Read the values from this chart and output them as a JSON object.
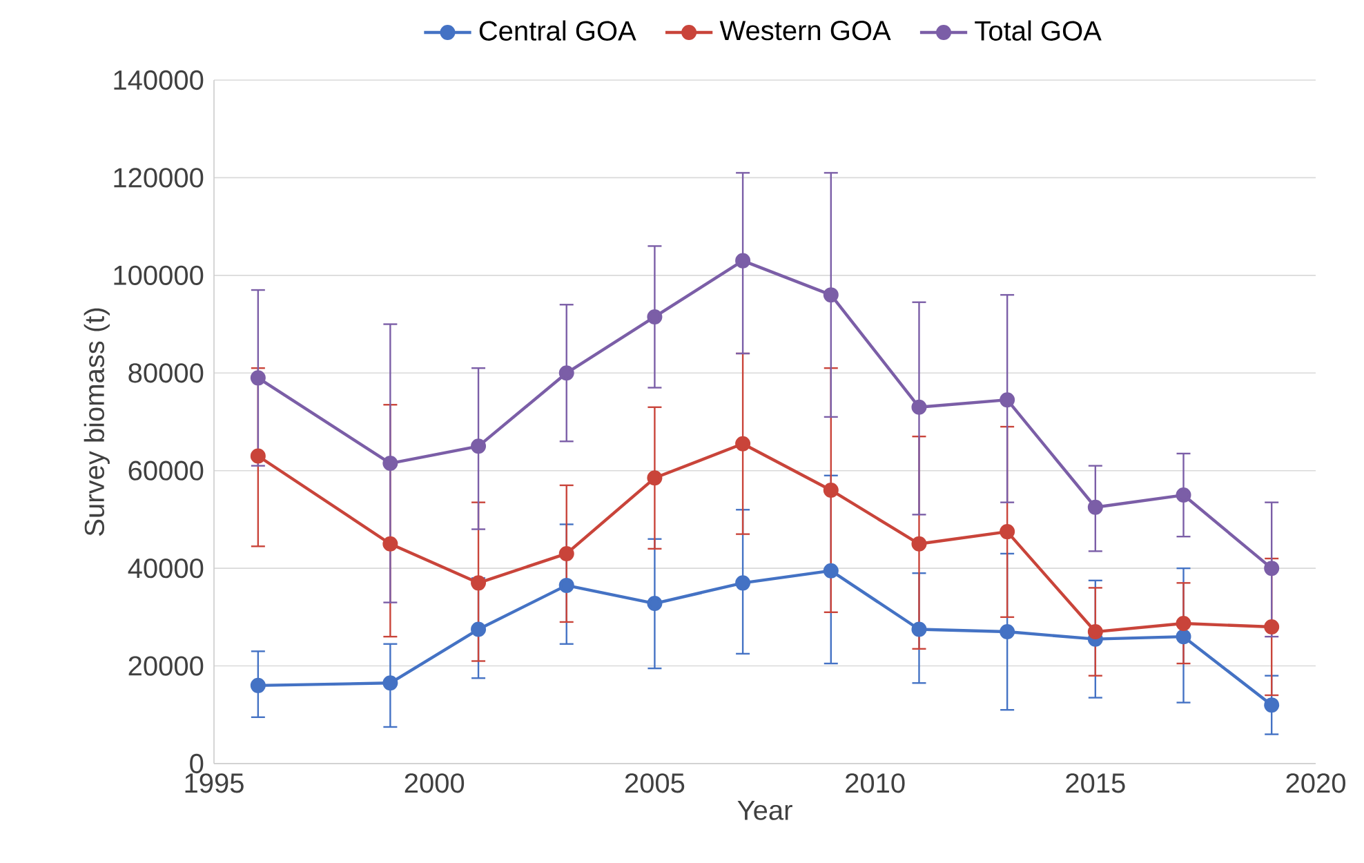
{
  "chart_data": {
    "type": "line",
    "xlabel": "Year",
    "ylabel": "Survey biomass (t)",
    "x": [
      1996,
      1999,
      2001,
      2003,
      2005,
      2007,
      2009,
      2011,
      2013,
      2015,
      2017,
      2019
    ],
    "series": [
      {
        "name": "Central GOA",
        "color": "#4472c4",
        "values": [
          16000,
          16500,
          27500,
          36500,
          32800,
          37000,
          39500,
          27500,
          27000,
          25500,
          26000,
          12000
        ],
        "errors": [
          [
            9500,
            23000
          ],
          [
            7500,
            24500
          ],
          [
            17500,
            38000
          ],
          [
            24500,
            49000
          ],
          [
            19500,
            46000
          ],
          [
            22500,
            52000
          ],
          [
            20500,
            59000
          ],
          [
            16500,
            39000
          ],
          [
            11000,
            43000
          ],
          [
            13500,
            37500
          ],
          [
            12500,
            40000
          ],
          [
            6000,
            18000
          ]
        ]
      },
      {
        "name": "Western GOA",
        "color": "#c9443a",
        "values": [
          63000,
          45000,
          37000,
          43000,
          58500,
          65500,
          56000,
          45000,
          47500,
          27000,
          28700,
          28000
        ],
        "errors": [
          [
            44500,
            81000
          ],
          [
            26000,
            73500
          ],
          [
            21000,
            53500
          ],
          [
            29000,
            57000
          ],
          [
            44000,
            73000
          ],
          [
            47000,
            84000
          ],
          [
            31000,
            81000
          ],
          [
            23500,
            67000
          ],
          [
            30000,
            69000
          ],
          [
            18000,
            36000
          ],
          [
            20500,
            37000
          ],
          [
            14000,
            42000
          ]
        ]
      },
      {
        "name": "Total GOA",
        "color": "#7b5ea7",
        "values": [
          79000,
          61500,
          65000,
          80000,
          91500,
          103000,
          96000,
          73000,
          74500,
          52500,
          55000,
          40000
        ],
        "errors": [
          [
            61000,
            97000
          ],
          [
            33000,
            90000
          ],
          [
            48000,
            81000
          ],
          [
            66000,
            94000
          ],
          [
            77000,
            106000
          ],
          [
            84000,
            121000
          ],
          [
            71000,
            121000
          ],
          [
            51000,
            94500
          ],
          [
            53500,
            96000
          ],
          [
            43500,
            61000
          ],
          [
            46500,
            63500
          ],
          [
            26000,
            53500
          ]
        ]
      }
    ],
    "xlim": [
      1995,
      2020
    ],
    "xticks": [
      1995,
      2000,
      2005,
      2010,
      2015,
      2020
    ],
    "ylim": [
      0,
      140000
    ],
    "yticks": [
      0,
      20000,
      40000,
      60000,
      80000,
      100000,
      120000,
      140000
    ],
    "grid": "y",
    "legend": "top",
    "marker": "circle",
    "line_style": "solid"
  }
}
